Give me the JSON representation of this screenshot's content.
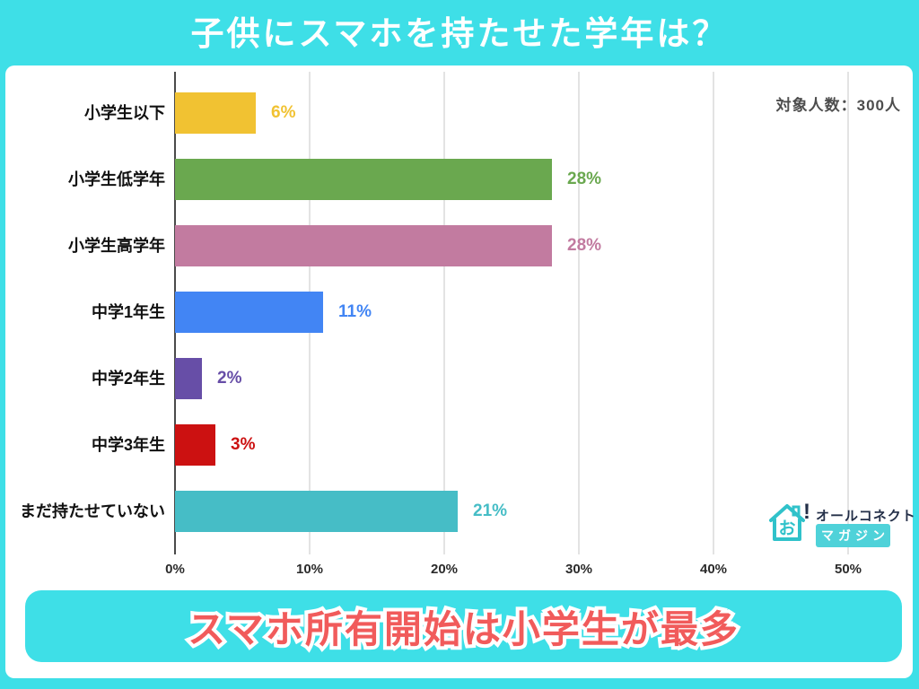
{
  "page": {
    "title": "子供にスマホを持たせた学年は？",
    "note": "対象人数：300人",
    "banner": "スマホ所有開始は小学生が最多"
  },
  "logo": {
    "brand": "オールコネクト",
    "sub": "マガジン",
    "icon_char": "お",
    "exclamation": "!"
  },
  "colors": {
    "background": "#3EDFE7",
    "panel": "#FFFFFF",
    "title_text": "#FFFFFF",
    "banner_fill": "#3EDFE7",
    "banner_text": "#F15B5B",
    "banner_text_outline": "#FFFFFF",
    "axis_line": "#4A4A4A",
    "gridline": "#E3E3E3",
    "category_text": "#111111",
    "tick_text": "#2B2B2B",
    "note_text": "#4D4D4D",
    "logo_teal": "#30C2CA",
    "logo_navy": "#232F48",
    "logo_sub_bg": "#4FD2D9"
  },
  "chart_data": {
    "type": "bar",
    "orientation": "horizontal",
    "title": "子供にスマホを持たせた学年は？",
    "subtitle_note": "対象人数：300人",
    "categories": [
      "小学生以下",
      "小学生低学年",
      "小学生高学年",
      "中学1年生",
      "中学2年生",
      "中学3年生",
      "まだ持たせていない"
    ],
    "values": [
      6,
      28,
      28,
      11,
      2,
      3,
      21
    ],
    "value_labels": [
      "6%",
      "28%",
      "28%",
      "11%",
      "2%",
      "3%",
      "21%"
    ],
    "bar_colors": [
      "#F1C232",
      "#6AA84F",
      "#C27BA0",
      "#4285F4",
      "#674EA7",
      "#CC1111",
      "#46BDC6"
    ],
    "xticks": [
      0,
      10,
      20,
      30,
      40,
      50
    ],
    "xtick_labels": [
      "0%",
      "10%",
      "20%",
      "30%",
      "40%",
      "50%"
    ],
    "xlabel": "",
    "ylabel": "",
    "xlim": [
      0,
      50
    ],
    "grid": true,
    "legend": "none",
    "annotation": "スマホ所有開始は小学生が最多"
  }
}
